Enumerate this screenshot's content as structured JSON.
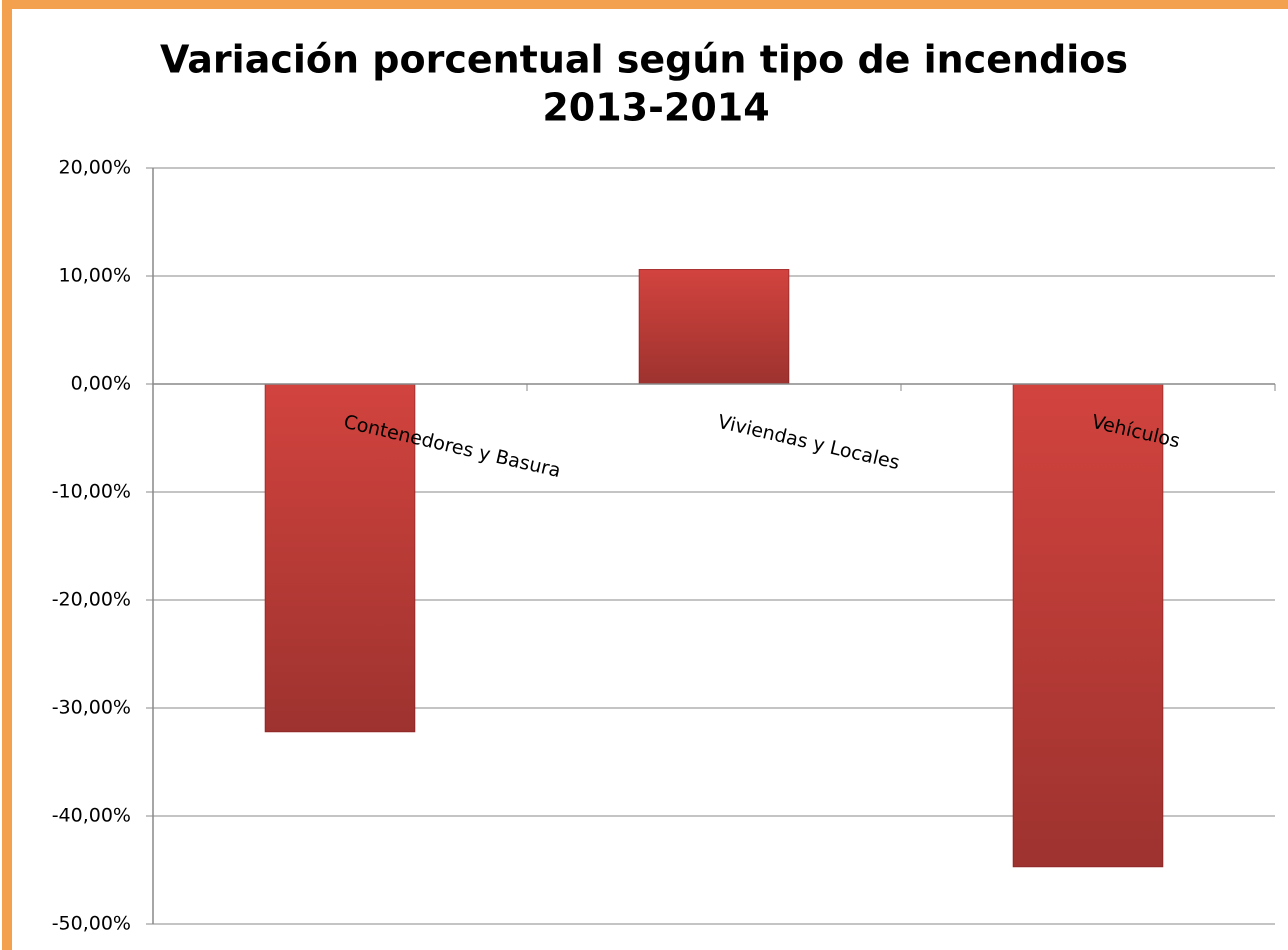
{
  "chart_data": {
    "type": "bar",
    "title": [
      "Variación porcentual según tipo de incendios",
      "2013-2014"
    ],
    "categories": [
      "Contenedores y Basura",
      "Viviendas y Locales",
      "Vehículos"
    ],
    "values": [
      -32.2,
      10.6,
      -44.7
    ],
    "color": "#d2433e",
    "ylim": [
      -50,
      20
    ],
    "yticks": [
      {
        "value": -50,
        "label": "-50,00%"
      },
      {
        "value": -40,
        "label": "-40,00%"
      },
      {
        "value": -30,
        "label": "-30,00%"
      },
      {
        "value": -20,
        "label": "-20,00%"
      },
      {
        "value": -10,
        "label": "-10,00%"
      },
      {
        "value": 0,
        "label": "0,00%"
      },
      {
        "value": 10,
        "label": "10,00%"
      },
      {
        "value": 20,
        "label": "20,00%"
      }
    ],
    "grid": true
  }
}
